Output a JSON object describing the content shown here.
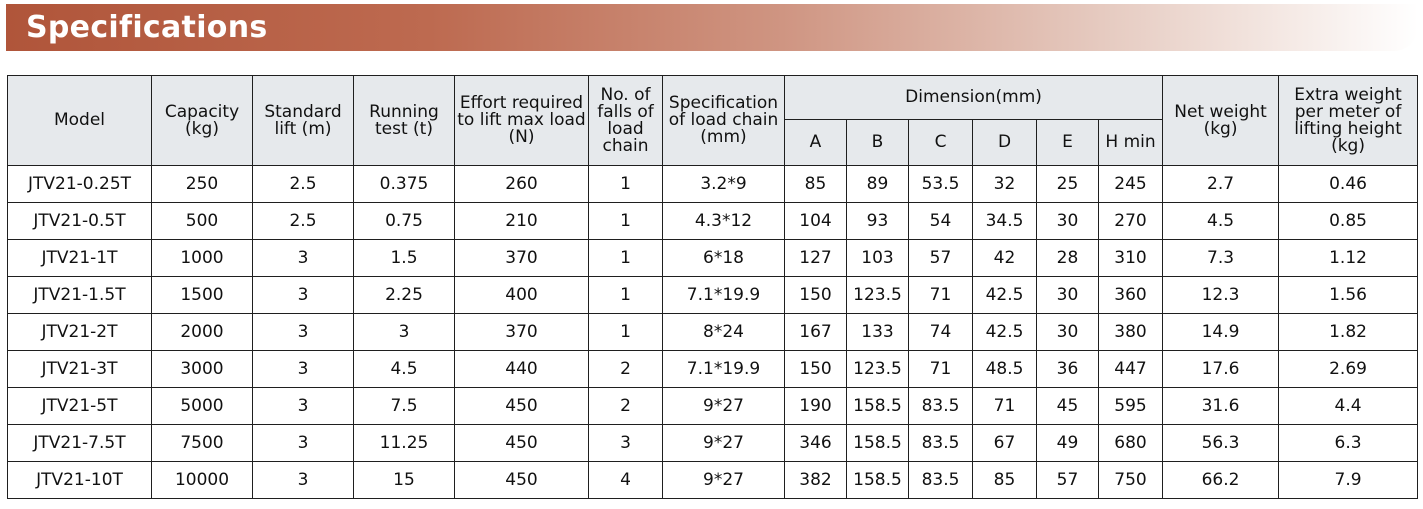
{
  "banner": {
    "title": "Specifications"
  },
  "table": {
    "headers": {
      "model": "Model",
      "capacity": "Capacity (kg)",
      "standard_lift": "Standard lift (m)",
      "running_test": "Running test (t)",
      "effort": "Effort required to lift max load (N)",
      "falls": "No. of falls of load chain",
      "chain_spec": "Specification of load chain (mm)",
      "dimension": "Dimension(mm)",
      "dim_a": "A",
      "dim_b": "B",
      "dim_c": "C",
      "dim_d": "D",
      "dim_e": "E",
      "dim_h": "H min",
      "net_weight": "Net weight (kg)",
      "extra_weight": "Extra weight per meter of lifting height (kg)"
    },
    "rows": [
      [
        "JTV21-0.25T",
        "250",
        "2.5",
        "0.375",
        "260",
        "1",
        "3.2*9",
        "85",
        "89",
        "53.5",
        "32",
        "25",
        "245",
        "2.7",
        "0.46"
      ],
      [
        "JTV21-0.5T",
        "500",
        "2.5",
        "0.75",
        "210",
        "1",
        "4.3*12",
        "104",
        "93",
        "54",
        "34.5",
        "30",
        "270",
        "4.5",
        "0.85"
      ],
      [
        "JTV21-1T",
        "1000",
        "3",
        "1.5",
        "370",
        "1",
        "6*18",
        "127",
        "103",
        "57",
        "42",
        "28",
        "310",
        "7.3",
        "1.12"
      ],
      [
        "JTV21-1.5T",
        "1500",
        "3",
        "2.25",
        "400",
        "1",
        "7.1*19.9",
        "150",
        "123.5",
        "71",
        "42.5",
        "30",
        "360",
        "12.3",
        "1.56"
      ],
      [
        "JTV21-2T",
        "2000",
        "3",
        "3",
        "370",
        "1",
        "8*24",
        "167",
        "133",
        "74",
        "42.5",
        "30",
        "380",
        "14.9",
        "1.82"
      ],
      [
        "JTV21-3T",
        "3000",
        "3",
        "4.5",
        "440",
        "2",
        "7.1*19.9",
        "150",
        "123.5",
        "71",
        "48.5",
        "36",
        "447",
        "17.6",
        "2.69"
      ],
      [
        "JTV21-5T",
        "5000",
        "3",
        "7.5",
        "450",
        "2",
        "9*27",
        "190",
        "158.5",
        "83.5",
        "71",
        "45",
        "595",
        "31.6",
        "4.4"
      ],
      [
        "JTV21-7.5T",
        "7500",
        "3",
        "11.25",
        "450",
        "3",
        "9*27",
        "346",
        "158.5",
        "83.5",
        "67",
        "49",
        "680",
        "56.3",
        "6.3"
      ],
      [
        "JTV21-10T",
        "10000",
        "3",
        "15",
        "450",
        "4",
        "9*27",
        "382",
        "158.5",
        "83.5",
        "85",
        "57",
        "750",
        "66.2",
        "7.9"
      ]
    ]
  }
}
